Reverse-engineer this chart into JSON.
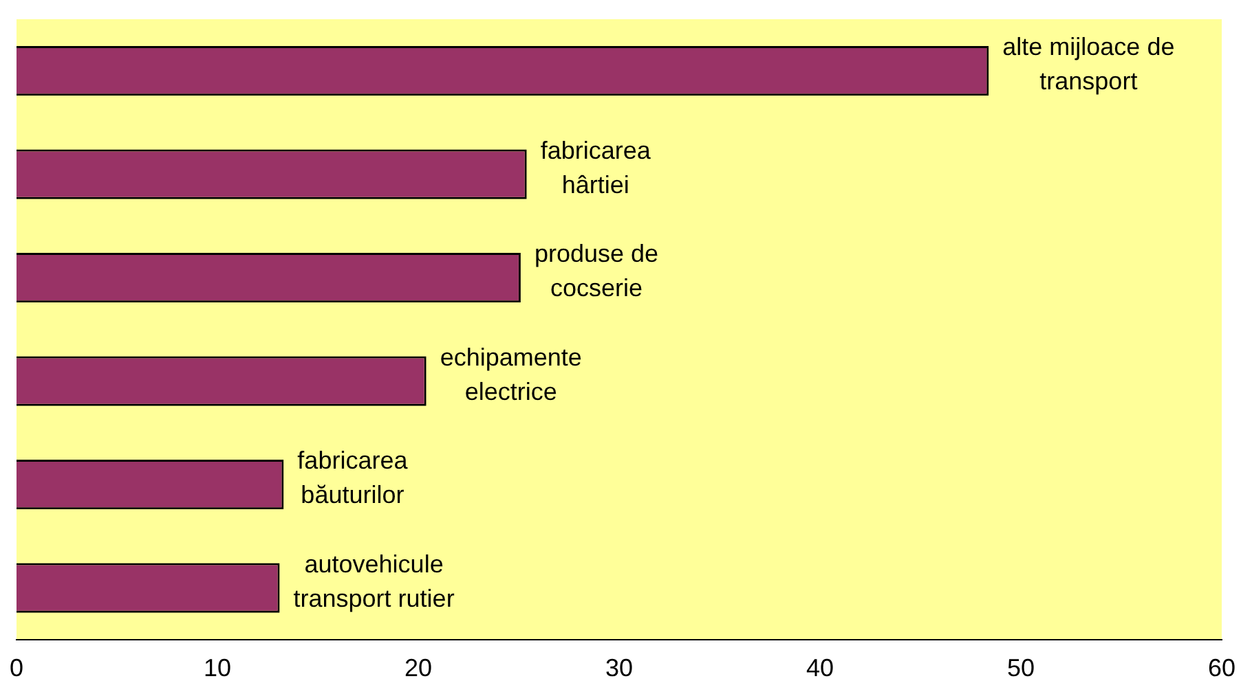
{
  "chart_data": {
    "type": "bar",
    "orientation": "horizontal",
    "categories": [
      "alte mijloace de transport",
      "fabricarea hârtiei",
      "produse de cocserie",
      "echipamente electrice",
      "fabricarea băuturilor",
      "autovehicule transport rutier"
    ],
    "values": [
      48.4,
      25.4,
      25.1,
      20.4,
      13.3,
      13.1
    ],
    "color": "#993366",
    "xlim": [
      0,
      60
    ],
    "xticks": [
      0,
      10,
      20,
      30,
      40,
      50,
      60
    ],
    "grid": false,
    "tick_labels": "x"
  }
}
